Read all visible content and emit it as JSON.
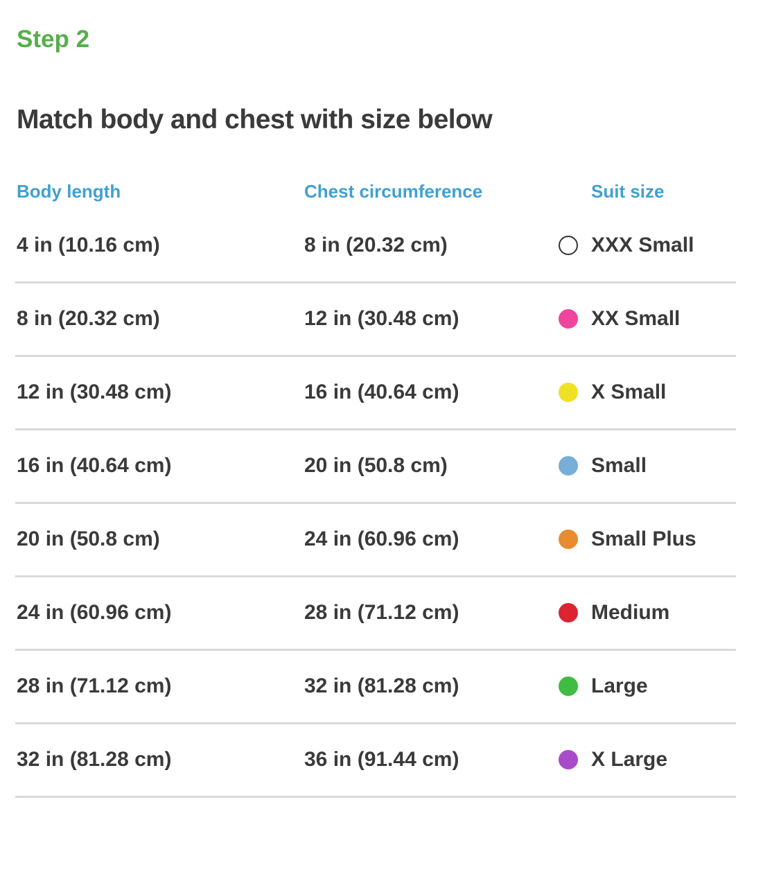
{
  "page": {
    "step_label": "Step 2",
    "title": "Match body and chest with size below"
  },
  "colors": {
    "step_green": "#56AE4B",
    "column_header_blue": "#41A0D1",
    "body_text": "#3A3A3A",
    "divider": "#D9D9D9",
    "background": "#FFFFFF"
  },
  "table": {
    "columns": {
      "body_length": "Body length",
      "chest_circumference": "Chest circumference",
      "suit_size": "Suit size"
    },
    "rows": [
      {
        "body_length": "4 in (10.16 cm)",
        "chest_circumference": "8 in (20.32 cm)",
        "suit_size": "XXX Small",
        "dot": {
          "fill": "#FFFFFF",
          "border": "#333333"
        }
      },
      {
        "body_length": "8 in (20.32 cm)",
        "chest_circumference": "12 in (30.48 cm)",
        "suit_size": "XX Small",
        "dot": {
          "fill": "#F0449E",
          "border": "#F0449E"
        }
      },
      {
        "body_length": "12 in (30.48 cm)",
        "chest_circumference": "16 in (40.64 cm)",
        "suit_size": "X Small",
        "dot": {
          "fill": "#F1E126",
          "border": "#F1E126"
        }
      },
      {
        "body_length": "16 in (40.64 cm)",
        "chest_circumference": "20 in (50.8 cm)",
        "suit_size": "Small",
        "dot": {
          "fill": "#76AFD7",
          "border": "#76AFD7"
        }
      },
      {
        "body_length": "20 in (50.8 cm)",
        "chest_circumference": "24 in (60.96 cm)",
        "suit_size": "Small Plus",
        "dot": {
          "fill": "#E98B2F",
          "border": "#E98B2F"
        }
      },
      {
        "body_length": "24 in (60.96 cm)",
        "chest_circumference": "28 in (71.12 cm)",
        "suit_size": "Medium",
        "dot": {
          "fill": "#DC2332",
          "border": "#DC2332"
        }
      },
      {
        "body_length": "28 in (71.12 cm)",
        "chest_circumference": "32 in (81.28 cm)",
        "suit_size": "Large",
        "dot": {
          "fill": "#3FBC41",
          "border": "#3FBC41"
        }
      },
      {
        "body_length": "32 in (81.28 cm)",
        "chest_circumference": "36 in (91.44 cm)",
        "suit_size": "X Large",
        "dot": {
          "fill": "#A74BC8",
          "border": "#A74BC8"
        }
      }
    ]
  }
}
